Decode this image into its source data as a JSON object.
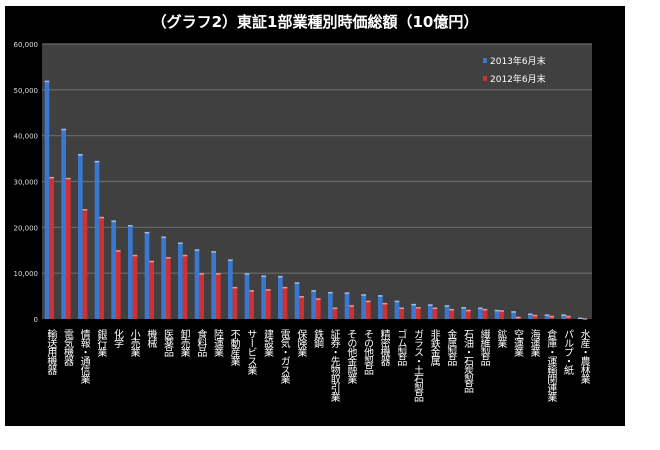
{
  "chart_data": {
    "type": "bar",
    "title": "（グラフ2）東証1部業種別時価総額（10億円）",
    "xlabel": "",
    "ylabel": "",
    "ylim": [
      0,
      60000
    ],
    "yticks": [
      "0",
      "10,000",
      "20,000",
      "30,000",
      "40,000",
      "50,000",
      "60,000"
    ],
    "ytick_values": [
      0,
      10000,
      20000,
      30000,
      40000,
      50000,
      60000
    ],
    "grid": true,
    "legend_position": "top-right",
    "categories": [
      "輸送用機器",
      "電気機器",
      "情報・通信業",
      "銀行業",
      "化学",
      "小売業",
      "機械",
      "医薬品",
      "卸売業",
      "食料品",
      "陸運業",
      "不動産業",
      "サービス業",
      "建設業",
      "電気・ガス業",
      "保険業",
      "鉄鋼",
      "証券・先物取引業",
      "その他金融業",
      "その他製品",
      "精密機器",
      "ゴム製品",
      "ガラス・土石製品",
      "非鉄金属",
      "金属製品",
      "石油・石炭製品",
      "繊維製品",
      "鉱業",
      "空運業",
      "海運業",
      "倉庫・運輸関連業",
      "パルプ・紙",
      "水産・農林業"
    ],
    "series": [
      {
        "name": "2013年6月末",
        "color": "#3a78d0",
        "values": [
          52000,
          41500,
          36000,
          34500,
          21500,
          20500,
          19000,
          18000,
          16700,
          15200,
          14800,
          13000,
          10000,
          9500,
          9400,
          8000,
          6300,
          5900,
          5800,
          5400,
          5200,
          4000,
          3300,
          3200,
          3000,
          2600,
          2500,
          2000,
          1700,
          1200,
          1000,
          1000,
          300
        ]
      },
      {
        "name": "2012年6月末",
        "color": "#d03030",
        "values": [
          31000,
          30800,
          24000,
          22300,
          15000,
          14000,
          12700,
          13500,
          14000,
          10000,
          10000,
          7000,
          6300,
          6500,
          7000,
          5000,
          4500,
          2500,
          3000,
          4000,
          3500,
          2500,
          2600,
          2500,
          2200,
          2000,
          2200,
          1900,
          500,
          900,
          700,
          700,
          150
        ]
      }
    ]
  }
}
